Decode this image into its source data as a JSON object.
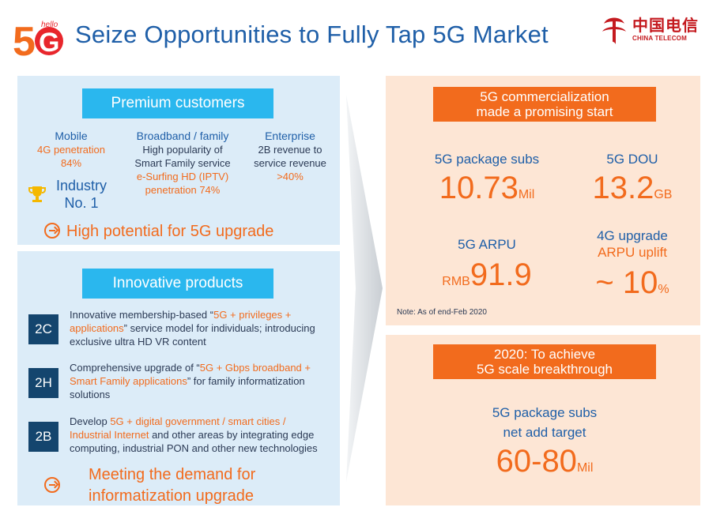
{
  "header": {
    "logo_text": "5G",
    "logo_small": "hello",
    "title": "Seize Opportunities to Fully Tap 5G Market",
    "brand_cn": "中国电信",
    "brand_en": "CHINA TELECOM",
    "colors": {
      "title": "#1f5fa8",
      "brand": "#c41a1f"
    }
  },
  "premium": {
    "pill": "Premium customers",
    "mobile": {
      "head": "Mobile",
      "line1": "4G penetration",
      "line2": "84%",
      "badge_line1": "Industry",
      "badge_line2": "No. 1",
      "badge_icon": "trophy-icon"
    },
    "broadband": {
      "head": "Broadband / family",
      "line1": "High popularity of",
      "line2": "Smart Family service",
      "line3": "e-Surfing HD (IPTV)",
      "line4": "penetration 74%"
    },
    "enterprise": {
      "head": "Enterprise",
      "line1": "2B revenue to",
      "line2": "service revenue",
      "line3": ">40%"
    },
    "potential": "High potential for 5G upgrade"
  },
  "innovative": {
    "pill": "Innovative products",
    "items": [
      {
        "tag": "2C",
        "p1": "Innovative membership-based “",
        "h1": "5G + privileges +",
        "h2": "applications",
        "p2": "” service model for individuals; introducing exclusive ultra HD VR content"
      },
      {
        "tag": "2H",
        "p1": "Comprehensive upgrade of “",
        "h1": "5G + Gbps broadband +",
        "h2": "Smart Family applications",
        "p2": "” for family informatization solutions"
      },
      {
        "tag": "2B",
        "p1": "Develop ",
        "h1": "5G + digital government / smart cities /",
        "h2": "Industrial Internet",
        "p2": " and other areas by integrating edge computing, industrial PON and other new technologies"
      }
    ],
    "meeting_line1": "Meeting the demand for",
    "meeting_line2": "informatization upgrade"
  },
  "commercial": {
    "pill_line1": "5G commercialization",
    "pill_line2": "made a promising start",
    "subs_label": "5G package subs",
    "subs_value": "10.73",
    "subs_unit": "Mil",
    "dou_label": "5G DOU",
    "dou_value": "13.2",
    "dou_unit": "GB",
    "arpu_label": "5G ARPU",
    "arpu_prefix": "RMB",
    "arpu_value": "91.9",
    "uplift_label1": "4G upgrade",
    "uplift_label2": "ARPU uplift",
    "uplift_value": "~ 10",
    "uplift_unit": "%",
    "note": "Note: As of end-Feb 2020"
  },
  "target": {
    "pill_line1": "2020: To achieve",
    "pill_line2": "5G scale breakthrough",
    "label1": "5G package subs",
    "label2": "net add target",
    "value": "60-80",
    "unit": "Mil"
  }
}
